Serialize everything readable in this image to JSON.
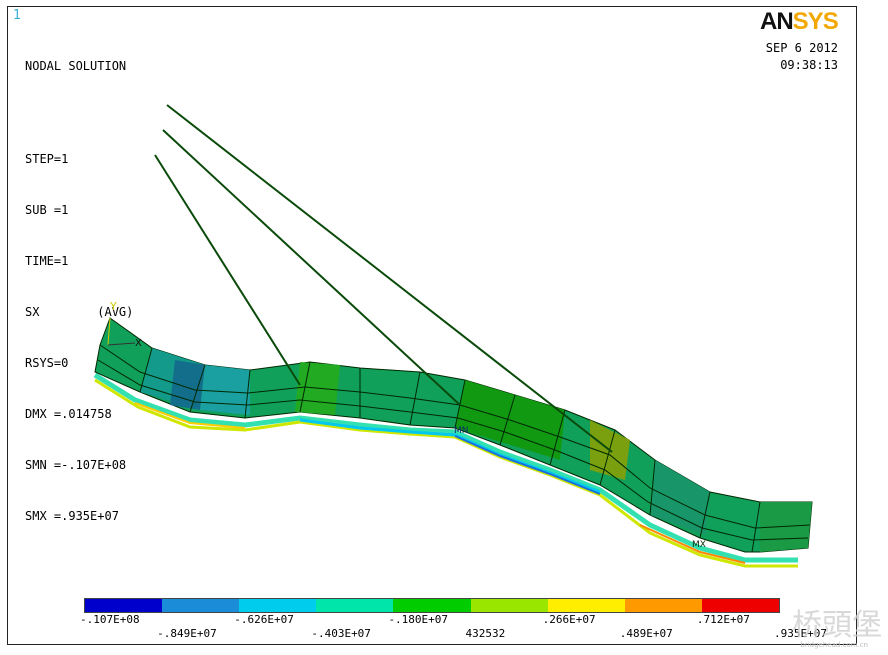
{
  "window_number": "1",
  "info_lines": {
    "title": "NODAL SOLUTION",
    "step": "STEP=1",
    "sub": "SUB =1",
    "time": "TIME=1",
    "sx": "SX        (AVG)",
    "rsys": "RSYS=0",
    "dmx": "DMX =.014758",
    "smn": "SMN =-.107E+08",
    "smx": "SMX =.935E+07"
  },
  "logo": {
    "an": "AN",
    "sys": "SYS"
  },
  "date": "SEP  6 2012",
  "time": "09:38:13",
  "axis": {
    "y": "Y",
    "x": "X"
  },
  "markers": {
    "mn": "MN",
    "mx": "MX"
  },
  "legend": {
    "colors": [
      "#0000cc",
      "#1a8cd8",
      "#00ccee",
      "#00e6aa",
      "#00cc00",
      "#99e600",
      "#ffee00",
      "#ff9900",
      "#ee0000"
    ],
    "labels_top": [
      ".107E+08",
      ".626E+07",
      ".180E+07",
      ".266E+07",
      ".712E+07"
    ],
    "labels_bottom": [
      ".849E+07",
      ".403E+07",
      "432532",
      ".489E+07",
      ".935E+07"
    ],
    "labels_top_signs": [
      "-",
      "-",
      "-",
      "",
      ""
    ],
    "labels_bottom_signs": [
      "-",
      "-",
      "",
      "",
      ""
    ]
  },
  "watermark": "桥頭堡",
  "watermark_url": "bridgehead.com.cn"
}
